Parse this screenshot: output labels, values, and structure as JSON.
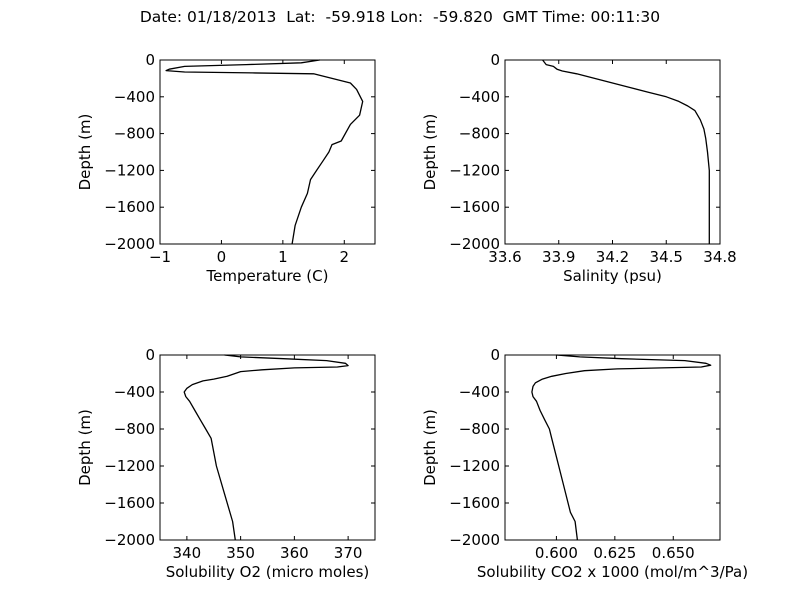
{
  "title": "Date: 01/18/2013  Lat:  -59.918 Lon:  -59.820  GMT Time: 00:11:30",
  "chart_data": [
    {
      "type": "line",
      "xlabel": "Temperature (C)",
      "ylabel": "Depth (m)",
      "xlim": [
        -1,
        2.5
      ],
      "ylim": [
        -2000,
        0
      ],
      "xticks": [
        "−1",
        "0",
        "1",
        "2"
      ],
      "xtick_values": [
        -1,
        0,
        1,
        2
      ],
      "yticks": [
        "0",
        "−400",
        "−800",
        "−1200",
        "−1600",
        "−2000"
      ],
      "ytick_values": [
        0,
        -400,
        -800,
        -1200,
        -1600,
        -2000
      ],
      "series": [
        {
          "x": [
            1.6,
            1.3,
            0.4,
            -0.6,
            -0.85,
            -0.9,
            -0.6,
            0.5,
            1.5,
            1.8,
            2.1,
            2.2,
            2.3,
            2.25,
            2.1,
            1.95,
            1.8,
            1.75,
            1.65,
            1.55,
            1.45,
            1.4,
            1.3,
            1.2,
            1.15
          ],
          "y": [
            0,
            -30,
            -50,
            -70,
            -100,
            -115,
            -130,
            -140,
            -150,
            -200,
            -250,
            -320,
            -450,
            -600,
            -700,
            -880,
            -920,
            -1000,
            -1100,
            -1200,
            -1300,
            -1450,
            -1600,
            -1800,
            -2000
          ]
        }
      ]
    },
    {
      "type": "line",
      "xlabel": "Salinity (psu)",
      "ylabel": "Depth (m)",
      "xlim": [
        33.6,
        34.8
      ],
      "ylim": [
        -2000,
        0
      ],
      "xticks": [
        "33.6",
        "33.9",
        "34.2",
        "34.5",
        "34.8"
      ],
      "xtick_values": [
        33.6,
        33.9,
        34.2,
        34.5,
        34.8
      ],
      "yticks": [
        "0",
        "−400",
        "−800",
        "−1200",
        "−1600",
        "−2000"
      ],
      "ytick_values": [
        0,
        -400,
        -800,
        -1200,
        -1600,
        -2000
      ],
      "series": [
        {
          "x": [
            33.81,
            33.83,
            33.87,
            33.89,
            33.92,
            34.0,
            34.1,
            34.2,
            34.3,
            34.4,
            34.5,
            34.57,
            34.62,
            34.66,
            34.69,
            34.71,
            34.72,
            34.73,
            34.74,
            34.74,
            34.74
          ],
          "y": [
            0,
            -50,
            -70,
            -100,
            -120,
            -150,
            -200,
            -250,
            -300,
            -350,
            -400,
            -450,
            -500,
            -550,
            -650,
            -750,
            -850,
            -1000,
            -1200,
            -1600,
            -2000
          ]
        }
      ]
    },
    {
      "type": "line",
      "xlabel": "Solubility O2 (micro moles)",
      "ylabel": "Depth (m)",
      "xlim": [
        335,
        375
      ],
      "ylim": [
        -2000,
        0
      ],
      "xticks": [
        "340",
        "350",
        "360",
        "370"
      ],
      "xtick_values": [
        340,
        350,
        360,
        370
      ],
      "yticks": [
        "0",
        "−400",
        "−800",
        "−1200",
        "−1600",
        "−2000"
      ],
      "ytick_values": [
        0,
        -400,
        -800,
        -1200,
        -1600,
        -2000
      ],
      "series": [
        {
          "x": [
            347,
            350,
            358,
            366,
            369.5,
            370,
            368,
            360,
            354,
            350,
            347.5,
            345,
            343,
            341,
            340,
            339.5,
            339.8,
            340.5,
            341.5,
            342.5,
            343.5,
            344.5,
            345.5,
            347,
            348.5,
            349
          ],
          "y": [
            0,
            -20,
            -40,
            -60,
            -90,
            -115,
            -130,
            -140,
            -160,
            -180,
            -230,
            -260,
            -280,
            -320,
            -360,
            -400,
            -450,
            -500,
            -600,
            -700,
            -800,
            -900,
            -1200,
            -1500,
            -1800,
            -2000
          ]
        }
      ]
    },
    {
      "type": "line",
      "xlabel": "Solubility CO2 x 1000 (mol/m^3/Pa)",
      "ylabel": "Depth (m)",
      "xlim": [
        0.578,
        0.67
      ],
      "ylim": [
        -2000,
        0
      ],
      "xticks": [
        "0.600",
        "0.625",
        "0.650"
      ],
      "xtick_values": [
        0.6,
        0.625,
        0.65
      ],
      "yticks": [
        "0",
        "−400",
        "−800",
        "−1200",
        "−1600",
        "−2000"
      ],
      "ytick_values": [
        0,
        -400,
        -800,
        -1200,
        -1600,
        -2000
      ],
      "series": [
        {
          "x": [
            0.6,
            0.61,
            0.628,
            0.655,
            0.664,
            0.666,
            0.662,
            0.645,
            0.626,
            0.612,
            0.604,
            0.598,
            0.594,
            0.591,
            0.59,
            0.5895,
            0.59,
            0.5915,
            0.593,
            0.595,
            0.597,
            0.598,
            0.6,
            0.603,
            0.606,
            0.608,
            0.609
          ],
          "y": [
            0,
            -20,
            -40,
            -60,
            -90,
            -110,
            -130,
            -140,
            -150,
            -170,
            -200,
            -230,
            -260,
            -300,
            -340,
            -400,
            -450,
            -500,
            -600,
            -700,
            -800,
            -900,
            -1100,
            -1400,
            -1700,
            -1800,
            -2000
          ]
        }
      ]
    }
  ]
}
